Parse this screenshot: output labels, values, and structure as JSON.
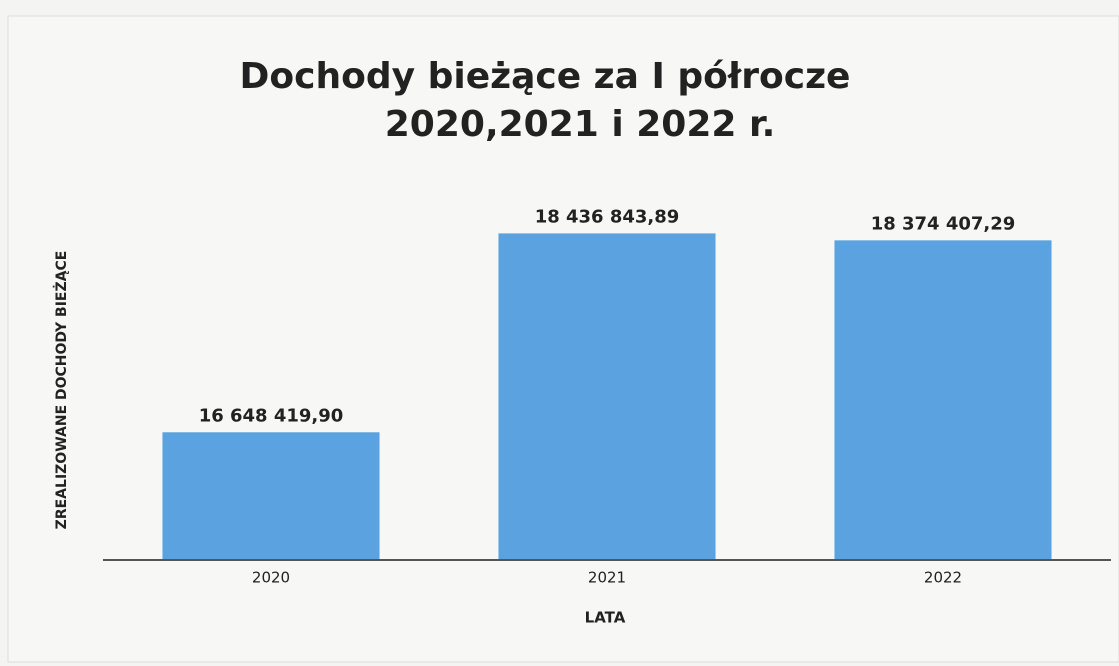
{
  "chart_data": {
    "type": "bar",
    "title": [
      "Dochody bieżące za I półrocze",
      "2020,2021 i 2022 r."
    ],
    "x_label": "LATA",
    "y_label": "ZREALIZOWANE DOCHODY BIEŻĄCE",
    "categories": [
      "2020",
      "2021",
      "2022"
    ],
    "values": [
      16648419.9,
      18436843.89,
      18374407.29
    ],
    "value_labels": [
      "16 648 419,90",
      "18 436 843,89",
      "18 374 407,29"
    ],
    "color": "#5ba3e0",
    "ylim": [
      15500000,
      18800000
    ]
  }
}
